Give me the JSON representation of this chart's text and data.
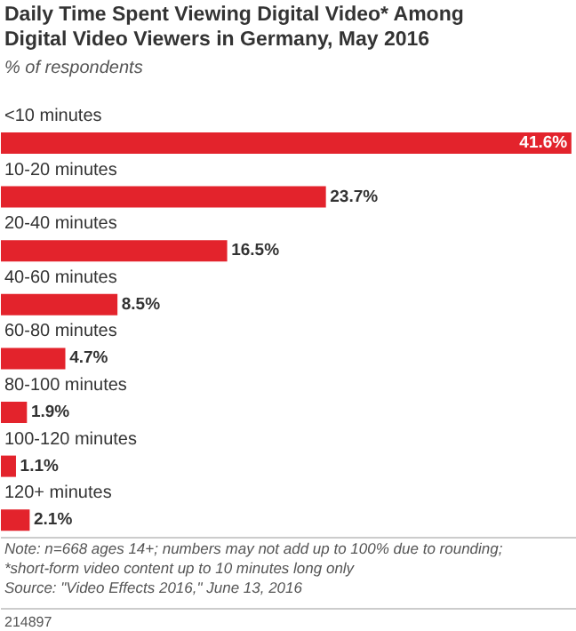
{
  "chart_data": {
    "type": "bar",
    "orientation": "horizontal",
    "title": "Daily Time Spent Viewing Digital Video* Among Digital Video Viewers in Germany, May 2016",
    "subtitle": "% of respondents",
    "categories": [
      "<10 minutes",
      "10-20 minutes",
      "20-40 minutes",
      "40-60 minutes",
      "60-80 minutes",
      "80-100 minutes",
      "100-120 minutes",
      "120+ minutes"
    ],
    "values": [
      41.6,
      23.7,
      16.5,
      8.5,
      4.7,
      1.9,
      1.1,
      2.1
    ],
    "value_labels": [
      "41.6%",
      "23.7%",
      "16.5%",
      "8.5%",
      "4.7%",
      "1.9%",
      "1.1%",
      "2.1%"
    ],
    "color": "#e3232c",
    "xlim": [
      0,
      42
    ],
    "annotations": [
      "Note: n=668 ages 14+; numbers may not add up to 100% due to rounding;",
      "*short-form video content up to 10 minutes long only",
      "Source: \"Video Effects 2016,\" June 13, 2016",
      "214897"
    ]
  }
}
